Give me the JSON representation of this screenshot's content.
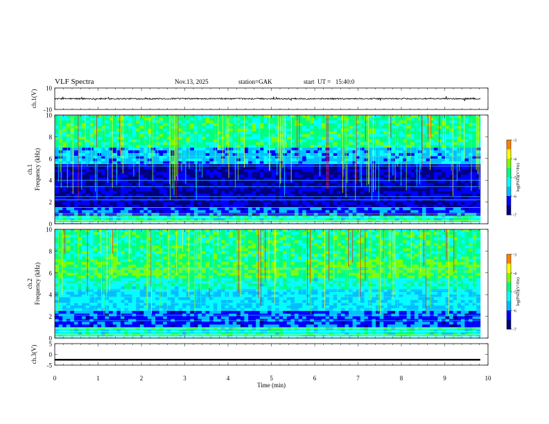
{
  "header": {
    "title": "VLF Spectra",
    "date": "Nov.13, 2025",
    "station": "station=GAK",
    "start": "start  UT =   15:40:0"
  },
  "colors": {
    "colormap": [
      "#000080",
      "#0000ff",
      "#00bfff",
      "#00ffff",
      "#00ff80",
      "#7fff00",
      "#ffff00",
      "#ff8000",
      "#ff0000",
      "#ffffff"
    ]
  },
  "chart_data": [
    {
      "id": "ch1-waveform",
      "type": "line",
      "ylabel": "ch.1(V)",
      "ylim": [
        -10,
        10
      ],
      "yticks": [
        10,
        -10
      ],
      "xlim": [
        0,
        10
      ],
      "level": 0,
      "noise_amplitude": 1.5,
      "trace_end_min": 9.82
    },
    {
      "id": "ch1-spectrogram",
      "type": "heatmap",
      "ylabel": "ch.1",
      "ylabel2": "Frequency (kHz)",
      "ylim": [
        0,
        10
      ],
      "yticks": [
        0,
        2,
        4,
        6,
        8,
        10
      ],
      "xlim": [
        0,
        10
      ],
      "data_end_min": 9.82,
      "colorbar": {
        "label": "log(PSD)(V²/Hz)",
        "range": [
          -7,
          -3
        ],
        "ticks": [
          "-3",
          "-4",
          "-5",
          "-6",
          "-7"
        ]
      }
    },
    {
      "id": "ch2-spectrogram",
      "type": "heatmap",
      "ylabel": "ch.2",
      "ylabel2": "Frequency (kHz)",
      "ylim": [
        0,
        10
      ],
      "yticks": [
        0,
        2,
        4,
        6,
        8,
        10
      ],
      "xlim": [
        0,
        10
      ],
      "data_end_min": 9.82,
      "colorbar": {
        "label": "log(PSD)(V²/Hz)",
        "range": [
          -7,
          -3
        ],
        "ticks": [
          "-3",
          "-4",
          "-5",
          "-6",
          "-7"
        ]
      }
    },
    {
      "id": "ch3-waveform",
      "type": "line",
      "ylabel": "ch.3(V)",
      "ylim": [
        -5,
        5
      ],
      "yticks": [
        5,
        0,
        -5
      ],
      "xlim": [
        0,
        10
      ],
      "level": -2.5,
      "trace_end_min": 9.82
    }
  ],
  "xaxis": {
    "label": "Time (min)",
    "ticks": [
      "0",
      "1",
      "2",
      "3",
      "4",
      "5",
      "6",
      "7",
      "8",
      "9",
      "10"
    ]
  }
}
